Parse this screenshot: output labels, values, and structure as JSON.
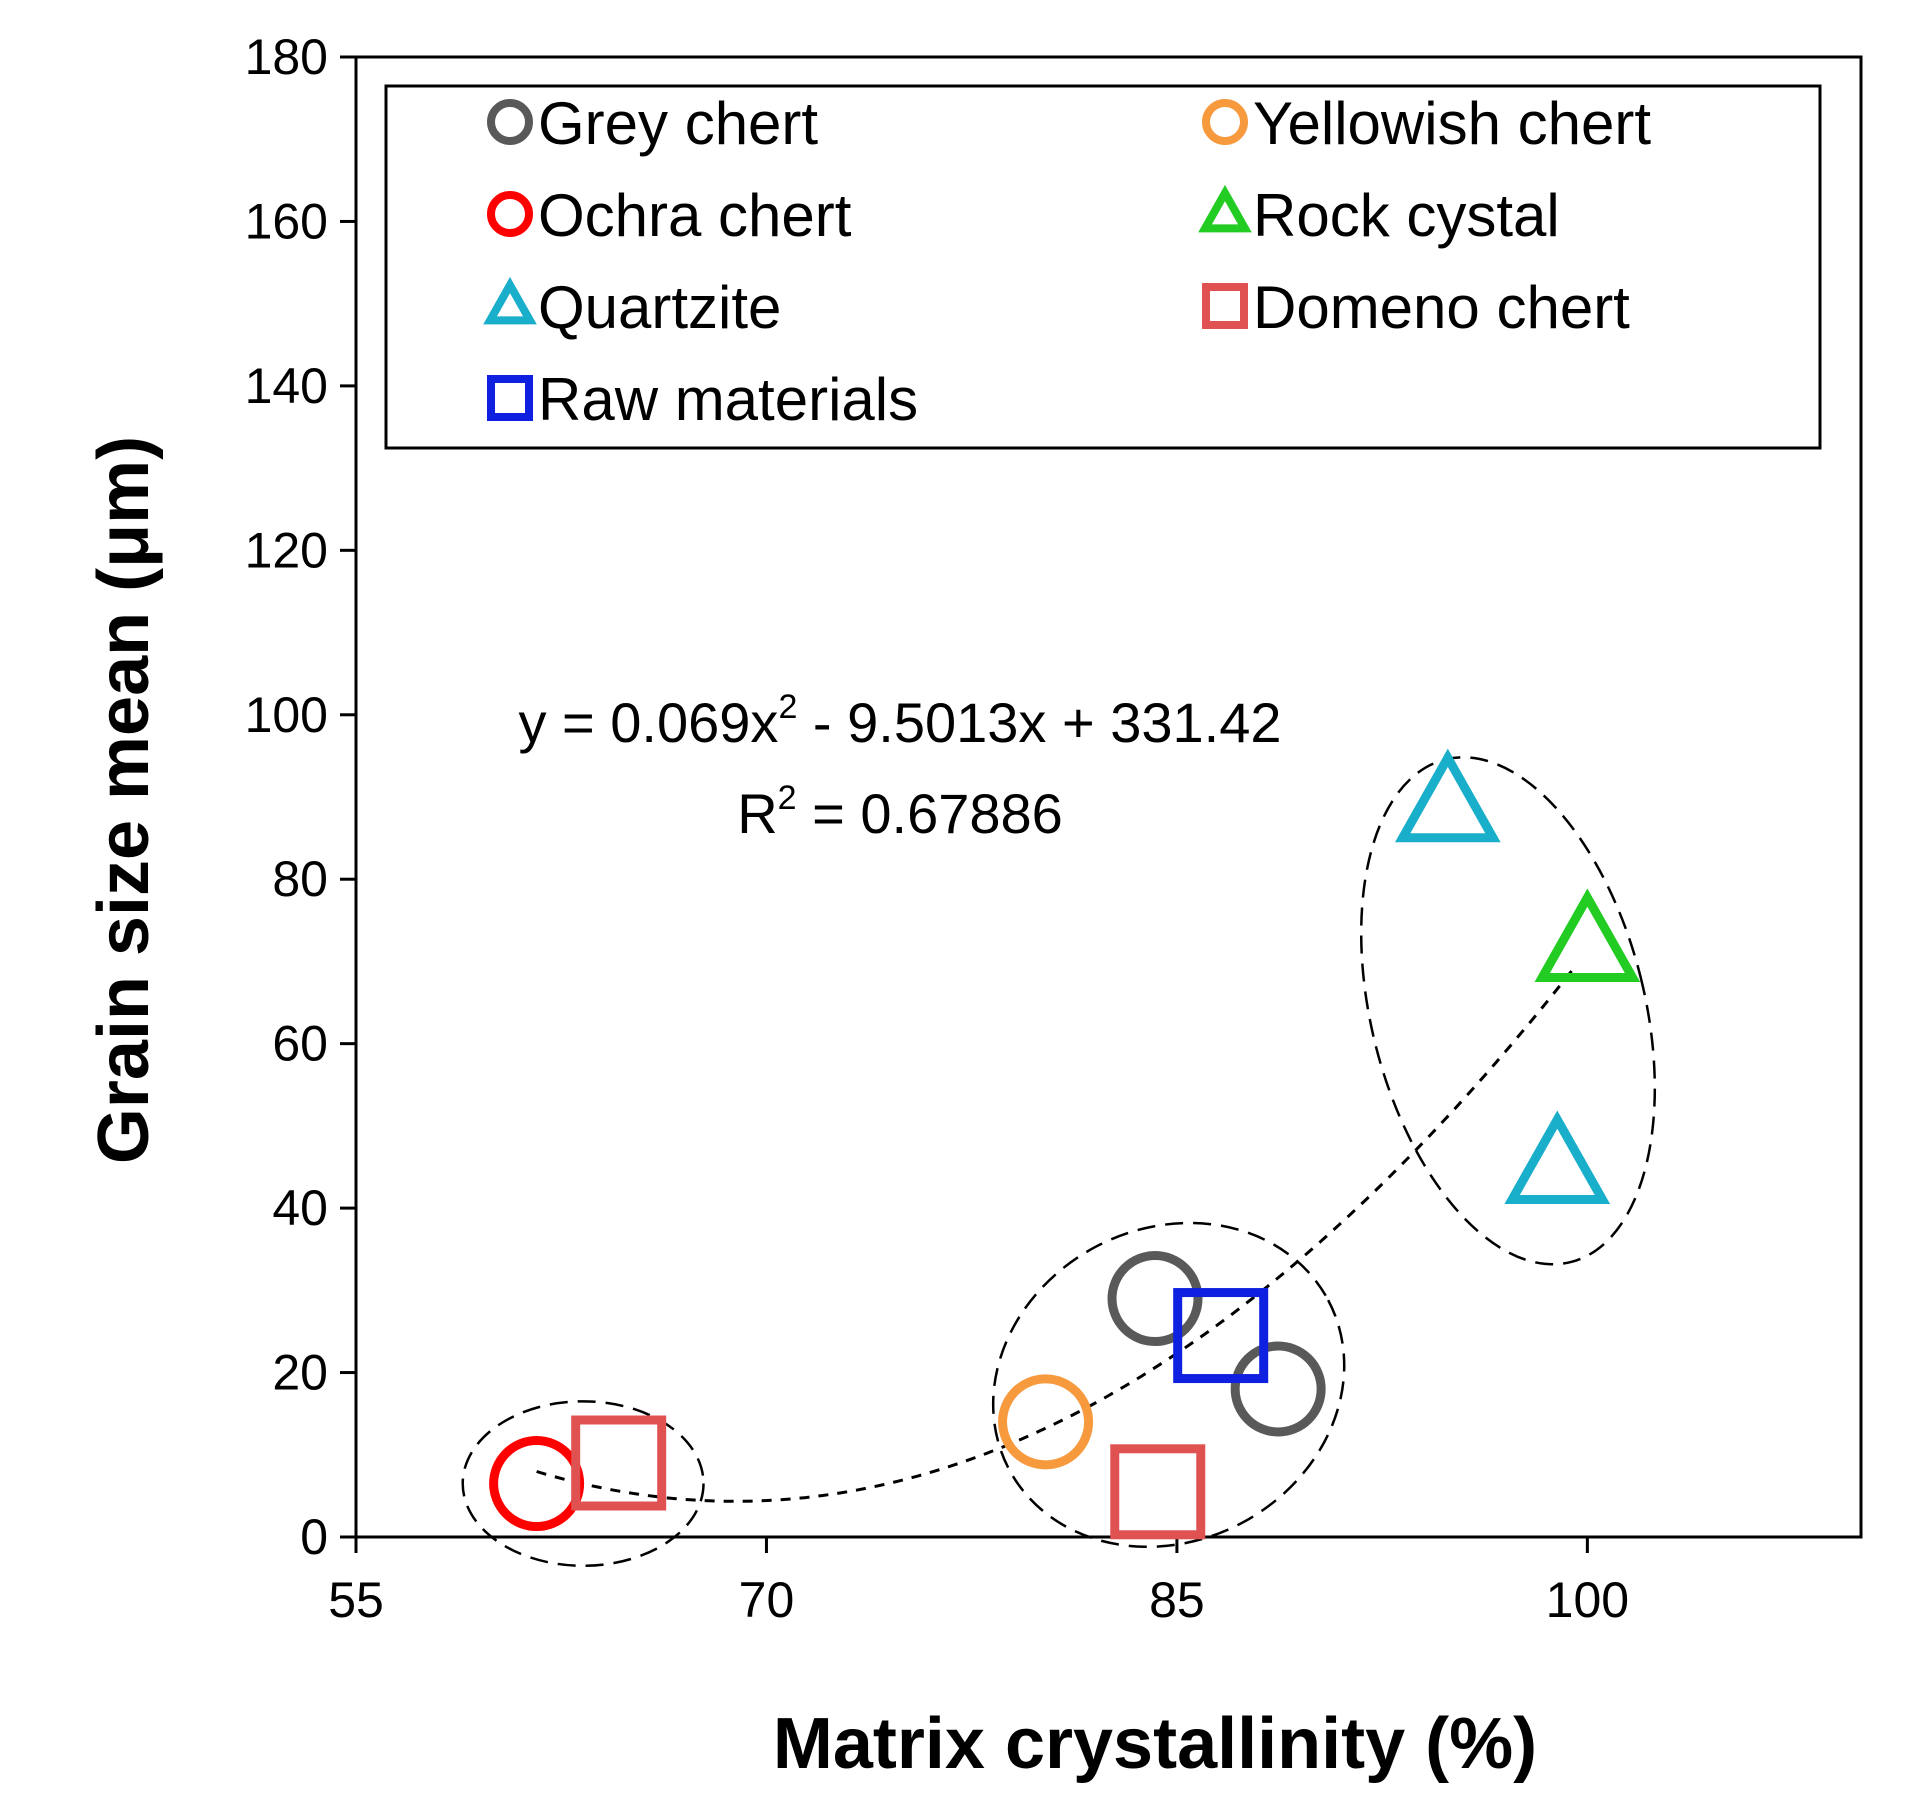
{
  "chart_data": {
    "type": "scatter",
    "title": "",
    "xlabel": "Matrix crystallinity (%)",
    "ylabel": "Grain size mean (μm)",
    "xlim": [
      55,
      110
    ],
    "ylim": [
      0,
      180
    ],
    "xticks": [
      55,
      70,
      85,
      100
    ],
    "yticks": [
      0,
      20,
      40,
      60,
      80,
      100,
      120,
      140,
      160,
      180
    ],
    "grid": false,
    "legend_position": "top",
    "series": [
      {
        "name": "Grey chert",
        "marker": "circle",
        "color": "#595959",
        "points": [
          {
            "x": 84.2,
            "y": 29
          },
          {
            "x": 88.7,
            "y": 18
          }
        ]
      },
      {
        "name": "Yellowish chert",
        "marker": "circle",
        "color": "#f79a3e",
        "points": [
          {
            "x": 80.2,
            "y": 14
          }
        ]
      },
      {
        "name": "Ochra chert",
        "marker": "circle",
        "color": "#ff0000",
        "points": [
          {
            "x": 61.6,
            "y": 6.5
          }
        ]
      },
      {
        "name": "Rock cystal",
        "marker": "triangle",
        "color": "#22cc22",
        "points": [
          {
            "x": 100.0,
            "y": 72
          }
        ]
      },
      {
        "name": "Quartzite",
        "marker": "triangle",
        "color": "#19aec9",
        "points": [
          {
            "x": 94.9,
            "y": 89
          },
          {
            "x": 98.9,
            "y": 45
          }
        ]
      },
      {
        "name": "Domeno chert",
        "marker": "square",
        "color": "#e05252",
        "points": [
          {
            "x": 64.6,
            "y": 9
          },
          {
            "x": 84.3,
            "y": 5.5
          }
        ]
      },
      {
        "name": "Raw materials",
        "marker": "square",
        "color": "#1020e0",
        "points": [
          {
            "x": 86.6,
            "y": 24.5
          }
        ]
      }
    ],
    "trendline": {
      "type": "polynomial",
      "coefficients": {
        "a": 0.069,
        "b": -9.5013,
        "c": 331.42
      },
      "x_range": [
        61.6,
        99.5
      ],
      "equation": "y = 0.069x",
      "equation_sup": "2",
      "equation_rest": " - 9.5013x + 331.42",
      "r2_prefix": "R",
      "r2_sup": "2",
      "r2_rest": " = 0.67886"
    },
    "group_ellipses": [
      {
        "cx": 63.3,
        "cy": 6.5,
        "rx": 4.4,
        "ry": 10,
        "angle": 0
      },
      {
        "cx": 84.7,
        "cy": 18.5,
        "rx": 6.6,
        "ry": 19,
        "angle": -28
      },
      {
        "cx": 97.1,
        "cy": 64,
        "rx": 5.0,
        "ry": 31.5,
        "angle": -14
      }
    ]
  }
}
